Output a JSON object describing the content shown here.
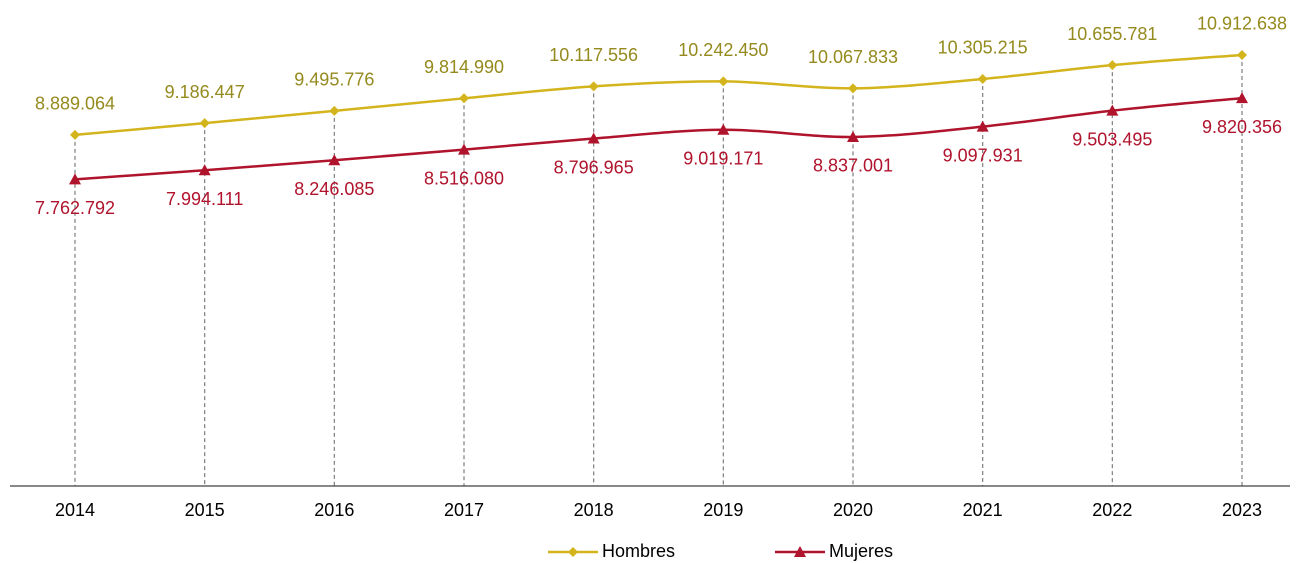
{
  "chart_data": {
    "type": "line",
    "categories": [
      "2014",
      "2015",
      "2016",
      "2017",
      "2018",
      "2019",
      "2020",
      "2021",
      "2022",
      "2023"
    ],
    "ylim": [
      0,
      12000000
    ],
    "series": [
      {
        "name": "Hombres",
        "color": "#d4b41c",
        "label_color": "#958a1e",
        "marker": "diamond",
        "values": [
          8889064,
          9186447,
          9495776,
          9814990,
          10117556,
          10242450,
          10067833,
          10305215,
          10655781,
          10912638
        ],
        "value_labels": [
          "8.889.064",
          "9.186.447",
          "9.495.776",
          "9.814.990",
          "10.117.556",
          "10.242.450",
          "10.067.833",
          "10.305.215",
          "10.655.781",
          "10.912.638"
        ]
      },
      {
        "name": "Mujeres",
        "color": "#b0132c",
        "label_color": "#b0132c",
        "marker": "triangle",
        "values": [
          7762792,
          7994111,
          8246085,
          8516080,
          8796965,
          9019171,
          8837001,
          9097931,
          9503495,
          9820356
        ],
        "value_labels": [
          "7.762.792",
          "7.994.111",
          "8.246.085",
          "8.516.080",
          "8.796.965",
          "9.019.171",
          "8.837.001",
          "9.097.931",
          "9.503.495",
          "9.820.356"
        ]
      }
    ]
  }
}
